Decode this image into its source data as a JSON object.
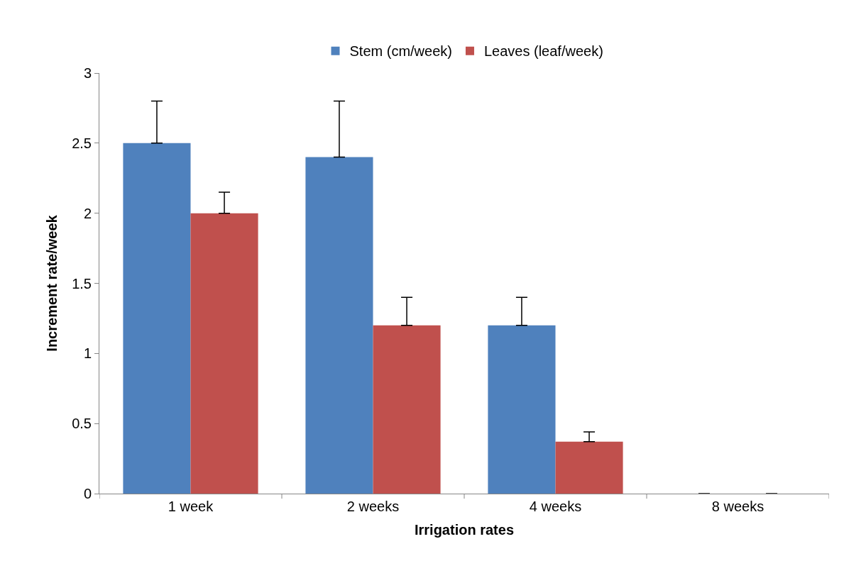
{
  "chart_data": {
    "type": "bar",
    "xlabel": "Irrigation rates",
    "ylabel": "Increment rate/week",
    "categories": [
      "1 week",
      "2 weeks",
      "4 weeks",
      "8 weeks"
    ],
    "series": [
      {
        "name": "Stem (cm/week)",
        "color": "#4f81bd",
        "values": [
          2.5,
          2.4,
          1.2,
          0
        ],
        "errors": [
          [
            2.5,
            2.8
          ],
          [
            2.4,
            2.8
          ],
          [
            1.2,
            1.4
          ],
          null
        ]
      },
      {
        "name": "Leaves (leaf/week)",
        "color": "#c0504d",
        "values": [
          2.0,
          1.2,
          0.37,
          0
        ],
        "errors": [
          [
            2.0,
            2.15
          ],
          [
            1.2,
            1.4
          ],
          [
            0.37,
            0.44
          ],
          null
        ]
      }
    ],
    "ylim": [
      0,
      3
    ],
    "yticks": [
      0,
      0.5,
      1,
      1.5,
      2,
      2.5,
      3
    ],
    "legend": "top"
  }
}
